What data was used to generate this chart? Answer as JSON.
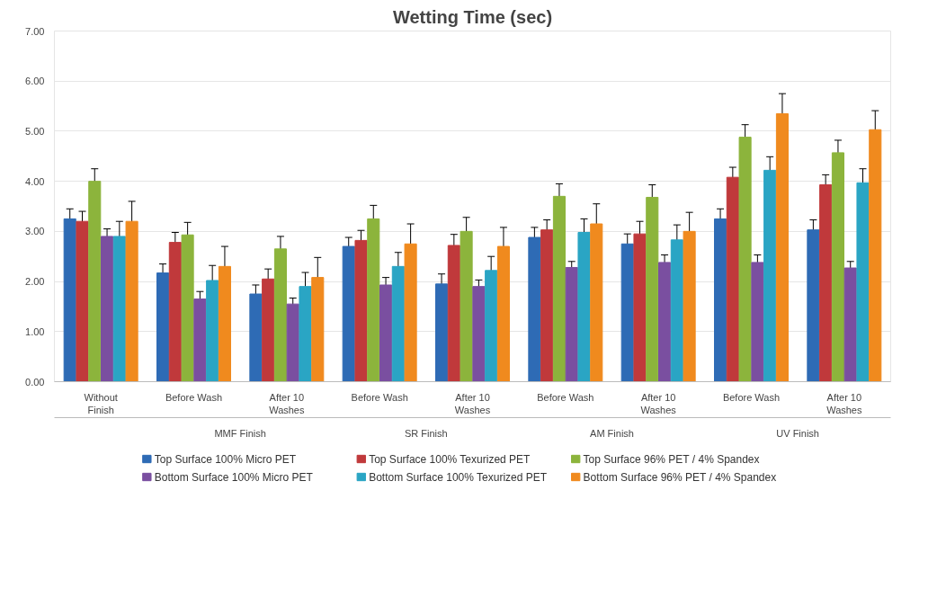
{
  "chart_data": {
    "type": "bar",
    "title": "Wetting Time (sec)",
    "categories": [
      "Without Finish",
      "Before Wash",
      "After 10 Washes",
      "Before Wash",
      "After 10 Washes",
      "Before Wash",
      "After 10 Washes",
      "Before Wash",
      "After 10 Washes"
    ],
    "annotations": [
      "MMF Finish",
      "SR Finish",
      "AM Finish",
      "UV Finish"
    ],
    "series": [
      {
        "name": "Top Surface 100% Micro PET",
        "color": "#2e6bb5",
        "values": [
          3.25,
          2.17,
          1.75,
          2.7,
          1.95,
          2.88,
          2.75,
          3.25,
          3.03
        ],
        "errors": [
          0.2,
          0.18,
          0.18,
          0.18,
          0.2,
          0.2,
          0.2,
          0.2,
          0.2
        ]
      },
      {
        "name": "Top Surface 100% Texurized PET",
        "color": "#c0393b",
        "values": [
          3.2,
          2.78,
          2.05,
          2.82,
          2.72,
          3.03,
          2.95,
          4.08,
          3.93
        ],
        "errors": [
          0.2,
          0.2,
          0.2,
          0.2,
          0.22,
          0.2,
          0.25,
          0.2,
          0.2
        ]
      },
      {
        "name": "Top Surface 96% PET / 4% Spandex",
        "color": "#8cb43c",
        "values": [
          4.0,
          2.93,
          2.65,
          3.25,
          3.0,
          3.7,
          3.68,
          4.88,
          4.57
        ],
        "errors": [
          0.25,
          0.25,
          0.25,
          0.27,
          0.28,
          0.25,
          0.25,
          0.25,
          0.25
        ]
      },
      {
        "name": "Bottom Surface 100% Micro PET",
        "color": "#7a4fa0",
        "values": [
          2.9,
          1.65,
          1.55,
          1.93,
          1.9,
          2.28,
          2.38,
          2.38,
          2.27
        ],
        "errors": [
          0.15,
          0.15,
          0.12,
          0.15,
          0.13,
          0.12,
          0.15,
          0.15,
          0.13
        ]
      },
      {
        "name": "Bottom Surface 100% Texurized PET",
        "color": "#2aa5c4",
        "values": [
          2.9,
          2.02,
          1.9,
          2.3,
          2.22,
          2.98,
          2.83,
          4.22,
          3.97
        ],
        "errors": [
          0.3,
          0.3,
          0.28,
          0.28,
          0.28,
          0.27,
          0.3,
          0.27,
          0.28
        ]
      },
      {
        "name": "Bottom Surface 96% PET / 4% Spandex",
        "color": "#f08a1e",
        "values": [
          3.2,
          2.3,
          2.08,
          2.75,
          2.7,
          3.15,
          3.0,
          5.35,
          5.03
        ],
        "errors": [
          0.4,
          0.4,
          0.4,
          0.4,
          0.38,
          0.4,
          0.38,
          0.4,
          0.38
        ]
      }
    ],
    "ylim": [
      0,
      7
    ],
    "yticks": [
      {
        "value": 0,
        "label": "0.00"
      },
      {
        "value": 1,
        "label": "1.00"
      },
      {
        "value": 2,
        "label": "2.00"
      },
      {
        "value": 3,
        "label": "3.00"
      },
      {
        "value": 4,
        "label": "4.00"
      },
      {
        "value": 5,
        "label": "5.00"
      },
      {
        "value": 6,
        "label": "6.00"
      },
      {
        "value": 7,
        "label": "7.00"
      }
    ],
    "grid": "y",
    "legend": "bottom"
  }
}
